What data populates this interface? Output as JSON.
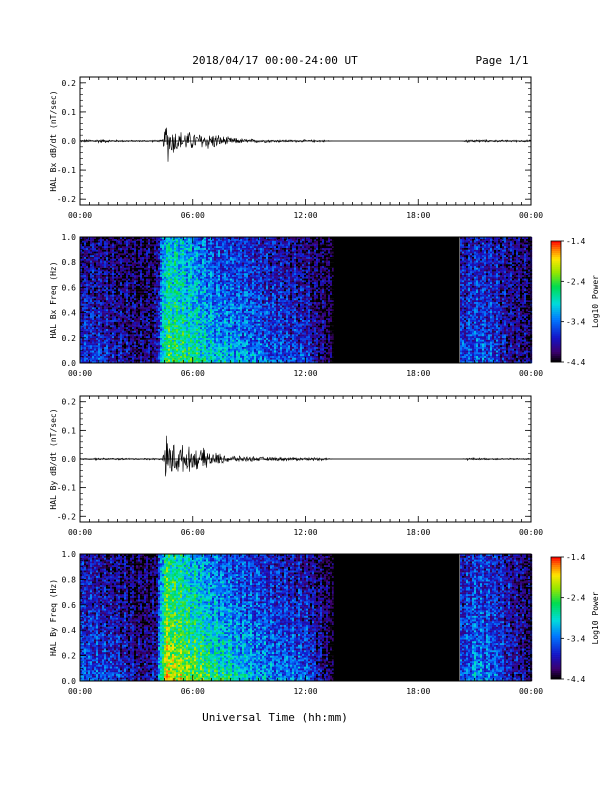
{
  "header": {
    "title": "2018/04/17  00:00-24:00 UT",
    "page_label": "Page 1/1"
  },
  "footer": {
    "xlabel": "Universal Time (hh:mm)"
  },
  "colorbar": {
    "title": "Log10 Power",
    "ticks": [
      "-1.4",
      "-2.4",
      "-3.4",
      "-4.4"
    ],
    "range": [
      -4.4,
      -1.4
    ]
  },
  "chart_data": [
    {
      "type": "line",
      "ylabel": "HAL Bx dB/dt (nT/sec)",
      "x_unit": "hours UT",
      "xlim": [
        0,
        24
      ],
      "ylim": [
        -0.22,
        0.22
      ],
      "yticks": [
        "0.2",
        "0.1",
        "0.0",
        "-0.1",
        "-0.2"
      ],
      "xticks": [
        "00:00",
        "06:00",
        "12:00",
        "18:00",
        "00:00"
      ],
      "envelope": {
        "x": [
          0,
          0.5,
          1.0,
          2.0,
          3.0,
          4.4,
          4.6,
          4.8,
          5.0,
          5.3,
          5.6,
          6.0,
          6.4,
          6.8,
          7.2,
          7.6,
          8.0,
          8.5,
          9.0,
          10.0,
          11.0,
          12.0,
          13.0,
          13.5,
          20.3,
          20.6,
          21.0,
          22.0,
          23.0,
          24.0
        ],
        "amp": [
          0.004,
          0.006,
          0.008,
          0.004,
          0.003,
          0.004,
          0.09,
          0.07,
          0.05,
          0.04,
          0.04,
          0.035,
          0.03,
          0.035,
          0.03,
          0.02,
          0.015,
          0.01,
          0.008,
          0.006,
          0.005,
          0.005,
          0.004,
          0.0,
          0.0,
          0.006,
          0.006,
          0.004,
          0.004,
          0.004
        ]
      },
      "data_gap": [
        13.5,
        20.2
      ]
    },
    {
      "type": "heatmap",
      "ylabel": "HAL Bx Freq (Hz)",
      "xlim": [
        0,
        24
      ],
      "ylim": [
        0,
        1.0
      ],
      "yticks": [
        "1.0",
        "0.8",
        "0.6",
        "0.4",
        "0.2",
        "0.0"
      ],
      "xticks": [
        "00:00",
        "06:00",
        "12:00",
        "18:00",
        "00:00"
      ],
      "x": [
        0,
        1,
        2,
        3,
        4,
        4.5,
        5,
        6,
        7,
        8,
        9,
        10,
        11,
        12,
        13.5,
        20.3,
        21,
        22,
        23,
        24
      ],
      "power_low_freq": [
        -3.6,
        -3.7,
        -3.8,
        -4.1,
        -4.0,
        -2.4,
        -2.5,
        -2.6,
        -2.9,
        -3.0,
        -3.2,
        -3.4,
        -3.5,
        -3.6,
        -4.4,
        -3.6,
        -3.4,
        -3.6,
        -4.0,
        -4.1
      ],
      "power_high_freq": [
        -4.0,
        -4.1,
        -4.2,
        -4.2,
        -4.2,
        -3.0,
        -3.0,
        -3.3,
        -3.6,
        -3.7,
        -3.8,
        -3.9,
        -4.0,
        -4.1,
        -4.4,
        -4.0,
        -3.8,
        -3.9,
        -4.1,
        -4.2
      ],
      "data_gap": [
        13.5,
        20.2
      ]
    },
    {
      "type": "line",
      "ylabel": "HAL By dB/dt (nT/sec)",
      "x_unit": "hours UT",
      "xlim": [
        0,
        24
      ],
      "ylim": [
        -0.22,
        0.22
      ],
      "yticks": [
        "0.2",
        "0.1",
        "0.0",
        "-0.1",
        "-0.2"
      ],
      "xticks": [
        "00:00",
        "06:00",
        "12:00",
        "18:00",
        "00:00"
      ],
      "envelope": {
        "x": [
          0,
          1,
          2,
          3,
          4.4,
          4.6,
          4.8,
          5.0,
          5.3,
          5.6,
          6.0,
          6.4,
          6.8,
          7.2,
          7.6,
          8.0,
          8.5,
          9.0,
          10.0,
          11.0,
          12.0,
          13.0,
          13.5,
          20.3,
          20.6,
          21.0,
          22.0,
          23.0,
          24.0
        ],
        "amp": [
          0.003,
          0.004,
          0.004,
          0.003,
          0.004,
          0.1,
          0.08,
          0.07,
          0.06,
          0.05,
          0.045,
          0.04,
          0.04,
          0.025,
          0.02,
          0.015,
          0.012,
          0.01,
          0.008,
          0.007,
          0.006,
          0.006,
          0.0,
          0.0,
          0.005,
          0.004,
          0.003,
          0.003,
          0.003
        ]
      },
      "data_gap": [
        13.5,
        20.2
      ]
    },
    {
      "type": "heatmap",
      "ylabel": "HAL By Freq (Hz)",
      "xlim": [
        0,
        24
      ],
      "ylim": [
        0,
        1.0
      ],
      "yticks": [
        "1.0",
        "0.8",
        "0.6",
        "0.4",
        "0.2",
        "0.0"
      ],
      "xticks": [
        "00:00",
        "06:00",
        "12:00",
        "18:00",
        "00:00"
      ],
      "x": [
        0,
        1,
        2,
        3,
        4,
        4.5,
        5,
        6,
        7,
        8,
        9,
        10,
        11,
        12,
        13.5,
        20.3,
        21,
        22,
        23,
        24
      ],
      "power_low_freq": [
        -3.4,
        -3.5,
        -3.6,
        -4.0,
        -3.9,
        -1.8,
        -2.0,
        -2.2,
        -2.5,
        -2.7,
        -3.0,
        -3.2,
        -3.3,
        -3.4,
        -4.4,
        -3.5,
        -3.2,
        -3.4,
        -3.9,
        -4.1
      ],
      "power_high_freq": [
        -3.9,
        -4.0,
        -4.1,
        -4.2,
        -4.2,
        -2.6,
        -2.8,
        -3.1,
        -3.4,
        -3.6,
        -3.7,
        -3.8,
        -3.9,
        -4.0,
        -4.4,
        -3.9,
        -3.7,
        -3.8,
        -4.0,
        -4.2
      ],
      "data_gap": [
        13.5,
        20.2
      ]
    }
  ]
}
